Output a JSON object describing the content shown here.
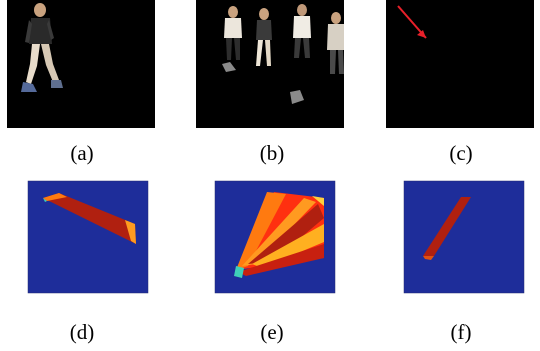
{
  "captions": {
    "a": "(a)",
    "b": "(b)",
    "c": "(c)",
    "d": "(d)",
    "e": "(e)",
    "f": "(f)"
  },
  "colors": {
    "video_background": "#000000",
    "flow_arrow": "#e8202a",
    "heatmap_background": "#1e2d9a",
    "heatmap_high": "#b02010",
    "heatmap_mid": "#ff7a10",
    "heatmap_low": "#3fd0b8"
  }
}
